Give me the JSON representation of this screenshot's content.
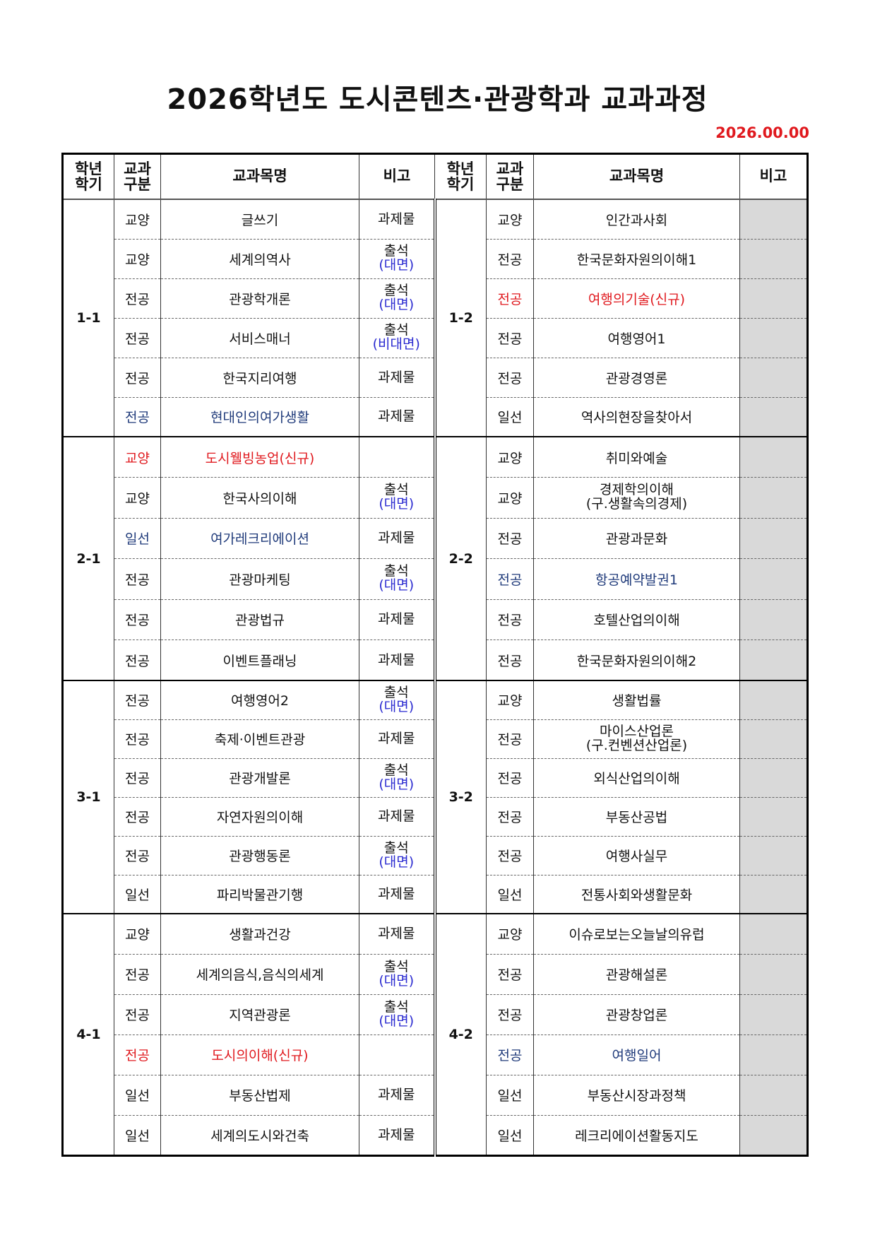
{
  "title": "2026학년도 도시콘텐츠·관광학과 교과과정",
  "date": "2026.00.00",
  "headers": {
    "sem": [
      "학년",
      "학기"
    ],
    "type": [
      "교과",
      "구분"
    ],
    "name": "교과목명",
    "note": "비고"
  },
  "colors": {
    "red": "#e0191e",
    "blue": "#1f3a7a",
    "note_sub": "#2a2ad0",
    "gray": "#d9d9d9"
  },
  "groups": [
    {
      "left": {
        "sem": "1-1",
        "rows": [
          {
            "type": "교양",
            "name": [
              "글쓰기"
            ],
            "note": [
              "과제물"
            ]
          },
          {
            "type": "교양",
            "name": [
              "세계의역사"
            ],
            "note": [
              "출석",
              "(대면)"
            ]
          },
          {
            "type": "전공",
            "name": [
              "관광학개론"
            ],
            "note": [
              "출석",
              "(대면)"
            ]
          },
          {
            "type": "전공",
            "name": [
              "서비스매너"
            ],
            "note": [
              "출석",
              "(비대면)"
            ]
          },
          {
            "type": "전공",
            "name": [
              "한국지리여행"
            ],
            "note": [
              "과제물"
            ]
          },
          {
            "type": "전공",
            "name": [
              "현대인의여가생활"
            ],
            "note": [
              "과제물"
            ],
            "color": "blue"
          }
        ]
      },
      "right": {
        "sem": "1-2",
        "rows": [
          {
            "type": "교양",
            "name": [
              "인간과사회"
            ]
          },
          {
            "type": "전공",
            "name": [
              "한국문화자원의이해1"
            ]
          },
          {
            "type": "전공",
            "name": [
              "여행의기술(신규)"
            ],
            "color": "red"
          },
          {
            "type": "전공",
            "name": [
              "여행영어1"
            ]
          },
          {
            "type": "전공",
            "name": [
              "관광경영론"
            ]
          },
          {
            "type": "일선",
            "name": [
              "역사의현장을찾아서"
            ]
          }
        ]
      }
    },
    {
      "left": {
        "sem": "2-1",
        "rows": [
          {
            "type": "교양",
            "name": [
              "도시웰빙농업(신규)"
            ],
            "note": [],
            "color": "red"
          },
          {
            "type": "교양",
            "name": [
              "한국사의이해"
            ],
            "note": [
              "출석",
              "(대면)"
            ]
          },
          {
            "type": "일선",
            "name": [
              "여가레크리에이션"
            ],
            "note": [
              "과제물"
            ],
            "color": "blue"
          },
          {
            "type": "전공",
            "name": [
              "관광마케팅"
            ],
            "note": [
              "출석",
              "(대면)"
            ]
          },
          {
            "type": "전공",
            "name": [
              "관광법규"
            ],
            "note": [
              "과제물"
            ]
          },
          {
            "type": "전공",
            "name": [
              "이벤트플래닝"
            ],
            "note": [
              "과제물"
            ]
          }
        ]
      },
      "right": {
        "sem": "2-2",
        "rows": [
          {
            "type": "교양",
            "name": [
              "취미와예술"
            ]
          },
          {
            "type": "교양",
            "name": [
              "경제학의이해",
              "(구.생활속의경제)"
            ]
          },
          {
            "type": "전공",
            "name": [
              "관광과문화"
            ]
          },
          {
            "type": "전공",
            "name": [
              "항공예약발권1"
            ],
            "color": "blue"
          },
          {
            "type": "전공",
            "name": [
              "호텔산업의이해"
            ]
          },
          {
            "type": "전공",
            "name": [
              "한국문화자원의이해2"
            ]
          }
        ]
      }
    },
    {
      "left": {
        "sem": "3-1",
        "rows": [
          {
            "type": "전공",
            "name": [
              "여행영어2"
            ],
            "note": [
              "출석",
              "(대면)"
            ]
          },
          {
            "type": "전공",
            "name": [
              "축제·이벤트관광"
            ],
            "note": [
              "과제물"
            ]
          },
          {
            "type": "전공",
            "name": [
              "관광개발론"
            ],
            "note": [
              "출석",
              "(대면)"
            ]
          },
          {
            "type": "전공",
            "name": [
              "자연자원의이해"
            ],
            "note": [
              "과제물"
            ]
          },
          {
            "type": "전공",
            "name": [
              "관광행동론"
            ],
            "note": [
              "출석",
              "(대면)"
            ]
          },
          {
            "type": "일선",
            "name": [
              "파리박물관기행"
            ],
            "note": [
              "과제물"
            ]
          }
        ]
      },
      "right": {
        "sem": "3-2",
        "rows": [
          {
            "type": "교양",
            "name": [
              "생활법률"
            ]
          },
          {
            "type": "전공",
            "name": [
              "마이스산업론",
              "(구.컨벤션산업론)"
            ]
          },
          {
            "type": "전공",
            "name": [
              "외식산업의이해"
            ]
          },
          {
            "type": "전공",
            "name": [
              "부동산공법"
            ]
          },
          {
            "type": "전공",
            "name": [
              "여행사실무"
            ]
          },
          {
            "type": "일선",
            "name": [
              "전통사회와생활문화"
            ]
          }
        ]
      }
    },
    {
      "left": {
        "sem": "4-1",
        "rows": [
          {
            "type": "교양",
            "name": [
              "생활과건강"
            ],
            "note": [
              "과제물"
            ]
          },
          {
            "type": "전공",
            "name": [
              "세계의음식,음식의세계"
            ],
            "note": [
              "출석",
              "(대면)"
            ]
          },
          {
            "type": "전공",
            "name": [
              "지역관광론"
            ],
            "note": [
              "출석",
              "(대면)"
            ]
          },
          {
            "type": "전공",
            "name": [
              "도시의이해(신규)"
            ],
            "note": [],
            "color": "red"
          },
          {
            "type": "일선",
            "name": [
              "부동산법제"
            ],
            "note": [
              "과제물"
            ]
          },
          {
            "type": "일선",
            "name": [
              "세계의도시와건축"
            ],
            "note": [
              "과제물"
            ]
          }
        ]
      },
      "right": {
        "sem": "4-2",
        "rows": [
          {
            "type": "교양",
            "name": [
              "이슈로보는오늘날의유럽"
            ]
          },
          {
            "type": "전공",
            "name": [
              "관광해설론"
            ]
          },
          {
            "type": "전공",
            "name": [
              "관광창업론"
            ]
          },
          {
            "type": "전공",
            "name": [
              "여행일어"
            ],
            "color": "blue"
          },
          {
            "type": "일선",
            "name": [
              "부동산시장과정책"
            ]
          },
          {
            "type": "일선",
            "name": [
              "레크리에이션활동지도"
            ]
          }
        ]
      }
    }
  ]
}
